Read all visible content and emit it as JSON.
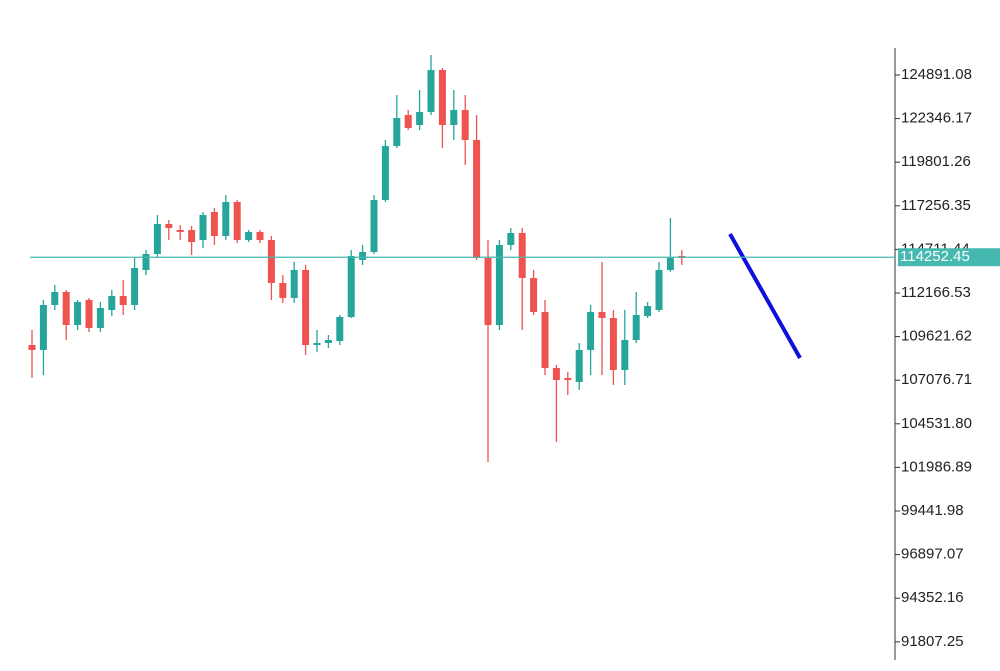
{
  "chart_data": {
    "type": "candlestick",
    "open": [
      109131,
      108839,
      111466,
      112225,
      110299,
      111758,
      110124,
      111174,
      111991,
      111466,
      113509,
      114443,
      116194,
      115844,
      115844,
      115260,
      116895,
      115494,
      117478,
      115260,
      115727,
      115260,
      112750,
      111875,
      113509,
      109131,
      109248,
      109365,
      110766,
      114093,
      114560,
      117595,
      120747,
      122556,
      121973,
      122732,
      125183,
      121973,
      122848,
      121097,
      114210,
      110299,
      114968,
      115669,
      113042,
      111058,
      107789,
      107205,
      106972,
      108839,
      111058,
      110707,
      107672,
      109423,
      110824,
      111174,
      113509,
      114326
    ],
    "high": [
      110007,
      111758,
      112634,
      112342,
      111758,
      111875,
      111641,
      112342,
      112925,
      114210,
      114676,
      116719,
      116428,
      116136,
      116077,
      116895,
      117128,
      117887,
      117595,
      115844,
      115844,
      115494,
      113217,
      113976,
      113801,
      110007,
      109715,
      110882,
      114676,
      114968,
      117887,
      121097,
      123724,
      122848,
      124016,
      126059,
      125300,
      124016,
      123724,
      122556,
      115260,
      115260,
      115961,
      115961,
      113509,
      111758,
      107964,
      107555,
      109248,
      111466,
      113976,
      111174,
      111174,
      112225,
      111641,
      113976,
      116544,
      114676
    ],
    "low": [
      107205,
      107380,
      111174,
      109423,
      110007,
      109890,
      109890,
      110824,
      110882,
      111174,
      113217,
      114210,
      115260,
      115260,
      114385,
      114793,
      114968,
      115260,
      115085,
      115143,
      115085,
      111758,
      111583,
      111583,
      108548,
      108723,
      108956,
      109131,
      110707,
      113801,
      114443,
      117478,
      120630,
      121681,
      121681,
      122556,
      120630,
      121097,
      119638,
      114093,
      102302,
      110007,
      114676,
      110007,
      110882,
      107380,
      103469,
      106213,
      106505,
      107380,
      107380,
      106797,
      106797,
      109248,
      110707,
      111058,
      113400,
      113801
    ],
    "close": [
      108839,
      111466,
      112225,
      110299,
      111641,
      110124,
      111291,
      111991,
      111466,
      113626,
      114443,
      116194,
      115961,
      115727,
      115143,
      116719,
      115494,
      117478,
      115260,
      115727,
      115260,
      112750,
      111875,
      113509,
      109131,
      109248,
      109423,
      110766,
      114326,
      114560,
      117595,
      120747,
      122381,
      121798,
      122732,
      125183,
      121973,
      122848,
      121097,
      114210,
      110299,
      114968,
      115669,
      113042,
      111058,
      107789,
      107088,
      107088,
      108839,
      111058,
      110707,
      107672,
      109423,
      110882,
      111408,
      113509,
      114210,
      114210
    ],
    "up_color": "#26a69a",
    "down_color": "#ef5350",
    "last_price": 114252.45,
    "last_price_color": "#45b8b0",
    "ylim": [
      90745,
      126350
    ],
    "yticks": [
      124891.08,
      122346.17,
      119801.26,
      117256.35,
      114711.44,
      112166.53,
      109621.62,
      107076.71,
      {
        "value": 104531.8,
        "label": "104531.80"
      },
      101986.89,
      99441.98,
      96897.07,
      94352.16,
      91807.25
    ]
  }
}
